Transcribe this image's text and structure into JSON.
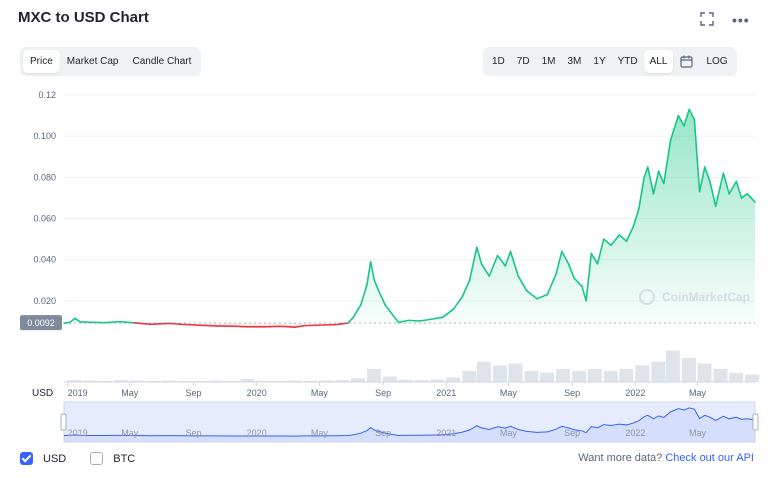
{
  "header": {
    "title": "MXC to USD Chart",
    "expand_icon": "expand-icon",
    "more_icon": "more-icon",
    "more_glyph": "•••"
  },
  "tabs": [
    {
      "label": "Price",
      "active": true
    },
    {
      "label": "Market Cap",
      "active": false
    },
    {
      "label": "Candle Chart",
      "active": false
    }
  ],
  "ranges": [
    {
      "label": "1D"
    },
    {
      "label": "7D"
    },
    {
      "label": "1M"
    },
    {
      "label": "3M"
    },
    {
      "label": "1Y"
    },
    {
      "label": "YTD"
    },
    {
      "label": "ALL",
      "active": true
    }
  ],
  "calendar_icon": "calendar-icon",
  "log_label": "LOG",
  "chart_data": {
    "type": "area",
    "ylabel": "USD",
    "y_ticks": [
      "0.12",
      "0.100",
      "0.080",
      "0.060",
      "0.040",
      "0.020"
    ],
    "y_tick_values": [
      0.12,
      0.1,
      0.08,
      0.06,
      0.04,
      0.02
    ],
    "ylim": [
      0.0,
      0.12
    ],
    "baseline_label": "0.0092",
    "baseline_value": 0.0092,
    "x_ticks": [
      "2019",
      "May",
      "Sep",
      "2020",
      "May",
      "Sep",
      "2021",
      "May",
      "Sep",
      "2022",
      "May"
    ],
    "x_tick_dates": [
      "2019-01-01",
      "2019-05-01",
      "2019-09-01",
      "2020-01-01",
      "2020-05-01",
      "2020-09-01",
      "2021-01-01",
      "2021-05-01",
      "2021-09-01",
      "2022-01-01",
      "2022-05-01"
    ],
    "xlim": [
      "2018-12-25",
      "2022-08-20"
    ],
    "series": [
      {
        "values": [
          [
            "2018-12-25",
            0.0092
          ],
          [
            "2019-01-05",
            0.0095
          ],
          [
            "2019-01-15",
            0.0115
          ],
          [
            "2019-01-25",
            0.0098
          ],
          [
            "2019-02-15",
            0.0096
          ],
          [
            "2019-03-15",
            0.0094
          ],
          [
            "2019-04-10",
            0.0099
          ],
          [
            "2019-05-10",
            0.0093
          ],
          [
            "2019-06-10",
            0.0086
          ],
          [
            "2019-07-15",
            0.009
          ],
          [
            "2019-08-15",
            0.0085
          ],
          [
            "2019-09-15",
            0.0081
          ],
          [
            "2019-10-15",
            0.0078
          ],
          [
            "2019-11-15",
            0.0077
          ],
          [
            "2019-12-15",
            0.0074
          ],
          [
            "2020-01-15",
            0.0074
          ],
          [
            "2020-02-15",
            0.0076
          ],
          [
            "2020-03-15",
            0.0072
          ],
          [
            "2020-04-01",
            0.0079
          ],
          [
            "2020-05-01",
            0.0082
          ],
          [
            "2020-06-01",
            0.0084
          ],
          [
            "2020-06-25",
            0.0092
          ],
          [
            "2020-07-05",
            0.0118
          ],
          [
            "2020-07-20",
            0.018
          ],
          [
            "2020-08-01",
            0.028
          ],
          [
            "2020-08-08",
            0.039
          ],
          [
            "2020-08-15",
            0.03
          ],
          [
            "2020-08-25",
            0.024
          ],
          [
            "2020-09-05",
            0.018
          ],
          [
            "2020-09-20",
            0.013
          ],
          [
            "2020-10-01",
            0.0095
          ],
          [
            "2020-10-20",
            0.0105
          ],
          [
            "2020-11-10",
            0.0102
          ],
          [
            "2020-12-01",
            0.011
          ],
          [
            "2020-12-25",
            0.012
          ],
          [
            "2021-01-15",
            0.016
          ],
          [
            "2021-02-01",
            0.022
          ],
          [
            "2021-02-15",
            0.03
          ],
          [
            "2021-03-01",
            0.046
          ],
          [
            "2021-03-10",
            0.038
          ],
          [
            "2021-03-25",
            0.032
          ],
          [
            "2021-04-10",
            0.042
          ],
          [
            "2021-04-25",
            0.037
          ],
          [
            "2021-05-05",
            0.044
          ],
          [
            "2021-05-20",
            0.032
          ],
          [
            "2021-06-05",
            0.025
          ],
          [
            "2021-06-25",
            0.021
          ],
          [
            "2021-07-15",
            0.023
          ],
          [
            "2021-08-01",
            0.033
          ],
          [
            "2021-08-12",
            0.044
          ],
          [
            "2021-08-25",
            0.038
          ],
          [
            "2021-09-05",
            0.031
          ],
          [
            "2021-09-20",
            0.027
          ],
          [
            "2021-09-28",
            0.02
          ],
          [
            "2021-10-08",
            0.043
          ],
          [
            "2021-10-20",
            0.038
          ],
          [
            "2021-11-01",
            0.05
          ],
          [
            "2021-11-15",
            0.047
          ],
          [
            "2021-12-01",
            0.052
          ],
          [
            "2021-12-15",
            0.049
          ],
          [
            "2021-12-28",
            0.056
          ],
          [
            "2022-01-08",
            0.065
          ],
          [
            "2022-01-18",
            0.08
          ],
          [
            "2022-01-25",
            0.085
          ],
          [
            "2022-02-05",
            0.072
          ],
          [
            "2022-02-15",
            0.083
          ],
          [
            "2022-02-25",
            0.077
          ],
          [
            "2022-03-10",
            0.098
          ],
          [
            "2022-03-25",
            0.11
          ],
          [
            "2022-04-05",
            0.105
          ],
          [
            "2022-04-15",
            0.113
          ],
          [
            "2022-04-25",
            0.108
          ],
          [
            "2022-05-05",
            0.073
          ],
          [
            "2022-05-15",
            0.085
          ],
          [
            "2022-05-25",
            0.078
          ],
          [
            "2022-06-05",
            0.066
          ],
          [
            "2022-06-20",
            0.082
          ],
          [
            "2022-07-01",
            0.072
          ],
          [
            "2022-07-15",
            0.078
          ],
          [
            "2022-07-25",
            0.07
          ],
          [
            "2022-08-05",
            0.072
          ],
          [
            "2022-08-20",
            0.068
          ]
        ],
        "color_above": "#16c784",
        "color_below": "#ea3943"
      }
    ],
    "volume": [
      [
        "2019-01",
        0.05
      ],
      [
        "2019-02",
        0.04
      ],
      [
        "2019-03",
        0.03
      ],
      [
        "2019-04",
        0.05
      ],
      [
        "2019-05",
        0.04
      ],
      [
        "2019-06",
        0.03
      ],
      [
        "2019-07",
        0.04
      ],
      [
        "2019-08",
        0.03
      ],
      [
        "2019-09",
        0.03
      ],
      [
        "2019-10",
        0.04
      ],
      [
        "2019-11",
        0.03
      ],
      [
        "2019-12",
        0.08
      ],
      [
        "2020-01",
        0.03
      ],
      [
        "2020-02",
        0.03
      ],
      [
        "2020-03",
        0.04
      ],
      [
        "2020-04",
        0.03
      ],
      [
        "2020-05",
        0.04
      ],
      [
        "2020-06",
        0.05
      ],
      [
        "2020-07",
        0.1
      ],
      [
        "2020-08",
        0.35
      ],
      [
        "2020-09",
        0.15
      ],
      [
        "2020-10",
        0.06
      ],
      [
        "2020-11",
        0.05
      ],
      [
        "2020-12",
        0.07
      ],
      [
        "2021-01",
        0.12
      ],
      [
        "2021-02",
        0.3
      ],
      [
        "2021-03",
        0.55
      ],
      [
        "2021-04",
        0.45
      ],
      [
        "2021-05",
        0.5
      ],
      [
        "2021-06",
        0.3
      ],
      [
        "2021-07",
        0.25
      ],
      [
        "2021-08",
        0.35
      ],
      [
        "2021-09",
        0.3
      ],
      [
        "2021-10",
        0.35
      ],
      [
        "2021-11",
        0.3
      ],
      [
        "2021-12",
        0.35
      ],
      [
        "2022-01",
        0.45
      ],
      [
        "2022-02",
        0.55
      ],
      [
        "2022-03",
        0.85
      ],
      [
        "2022-04",
        0.65
      ],
      [
        "2022-05",
        0.5
      ],
      [
        "2022-06",
        0.35
      ],
      [
        "2022-07",
        0.25
      ],
      [
        "2022-08",
        0.2
      ]
    ],
    "navigator_ticks": [
      "2019",
      "May",
      "Sep",
      "2020",
      "May",
      "Sep",
      "2021",
      "May",
      "Sep",
      "2022",
      "May"
    ],
    "watermark": "CoinMarketCap",
    "grid": true,
    "colors": {
      "up": "#16c784",
      "down": "#ea3943",
      "navigator_line": "#3861fb",
      "navigator_fill": "#e6ecfd",
      "grid": "#eff2f5",
      "baseline_label_bg": "#808a9d"
    }
  },
  "legend": [
    {
      "label": "USD",
      "checked": true
    },
    {
      "label": "BTC",
      "checked": false
    }
  ],
  "footer": {
    "prompt": "Want more data?",
    "link": "Check out our API"
  }
}
